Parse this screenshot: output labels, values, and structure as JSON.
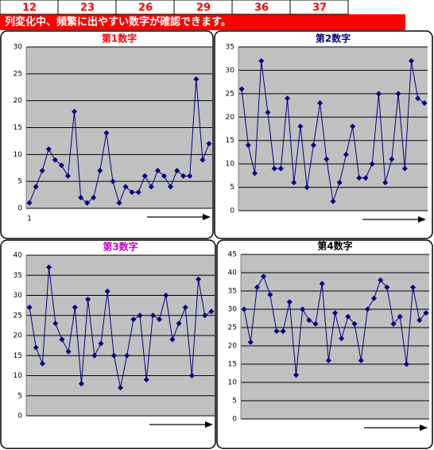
{
  "header": {
    "cells": [
      12,
      23,
      26,
      29,
      36,
      37
    ],
    "banner": "列変化中、頻繁に出やすい数字が確認できます。"
  },
  "chart_data": [
    {
      "type": "line",
      "title": "第1数字",
      "title_color": "#ff0000",
      "color": "#000080",
      "categories": [
        "1",
        null,
        null,
        null,
        null,
        null,
        null,
        null,
        null,
        null,
        null,
        null,
        null,
        null,
        null,
        null,
        null,
        null,
        null,
        null,
        null,
        null,
        null,
        null,
        null,
        null,
        null,
        null,
        null
      ],
      "values": [
        1,
        4,
        7,
        11,
        9,
        8,
        6,
        18,
        2,
        1,
        2,
        7,
        14,
        5,
        1,
        4,
        3,
        3,
        6,
        4,
        7,
        6,
        4,
        7,
        6,
        6,
        24,
        9,
        12
      ],
      "ylim": [
        0,
        30
      ],
      "yticks": [
        0,
        5,
        10,
        15,
        20,
        25,
        30
      ],
      "grid": true
    },
    {
      "type": "line",
      "title": "第2数字",
      "title_color": "#000080",
      "color": "#000080",
      "values": [
        26,
        14,
        8,
        32,
        21,
        9,
        9,
        24,
        6,
        18,
        5,
        14,
        23,
        11,
        2,
        6,
        12,
        18,
        7,
        7,
        10,
        25,
        6,
        11,
        25,
        9,
        32,
        24,
        23
      ],
      "ylim": [
        0,
        35
      ],
      "yticks": [
        0,
        5,
        10,
        15,
        20,
        25,
        30,
        35
      ],
      "grid": true
    },
    {
      "type": "line",
      "title": "第3数字",
      "title_color": "#cc00cc",
      "color": "#000080",
      "values": [
        27,
        17,
        13,
        37,
        23,
        19,
        16,
        27,
        8,
        29,
        15,
        18,
        31,
        15,
        7,
        15,
        24,
        25,
        9,
        25,
        24,
        30,
        19,
        23,
        27,
        10,
        34,
        25,
        26
      ],
      "ylim": [
        0,
        40
      ],
      "yticks": [
        0,
        5,
        10,
        15,
        20,
        25,
        30,
        35,
        40
      ],
      "grid": true
    },
    {
      "type": "line",
      "title": "第4数字",
      "title_color": "#000000",
      "color": "#000080",
      "values": [
        30,
        21,
        36,
        39,
        34,
        24,
        24,
        32,
        12,
        30,
        27,
        26,
        37,
        16,
        29,
        22,
        28,
        26,
        16,
        30,
        33,
        38,
        36,
        26,
        28,
        15,
        36,
        27,
        29
      ],
      "ylim": [
        0,
        45
      ],
      "yticks": [
        0,
        5,
        10,
        15,
        20,
        25,
        30,
        35,
        40,
        45
      ],
      "grid": true
    }
  ]
}
